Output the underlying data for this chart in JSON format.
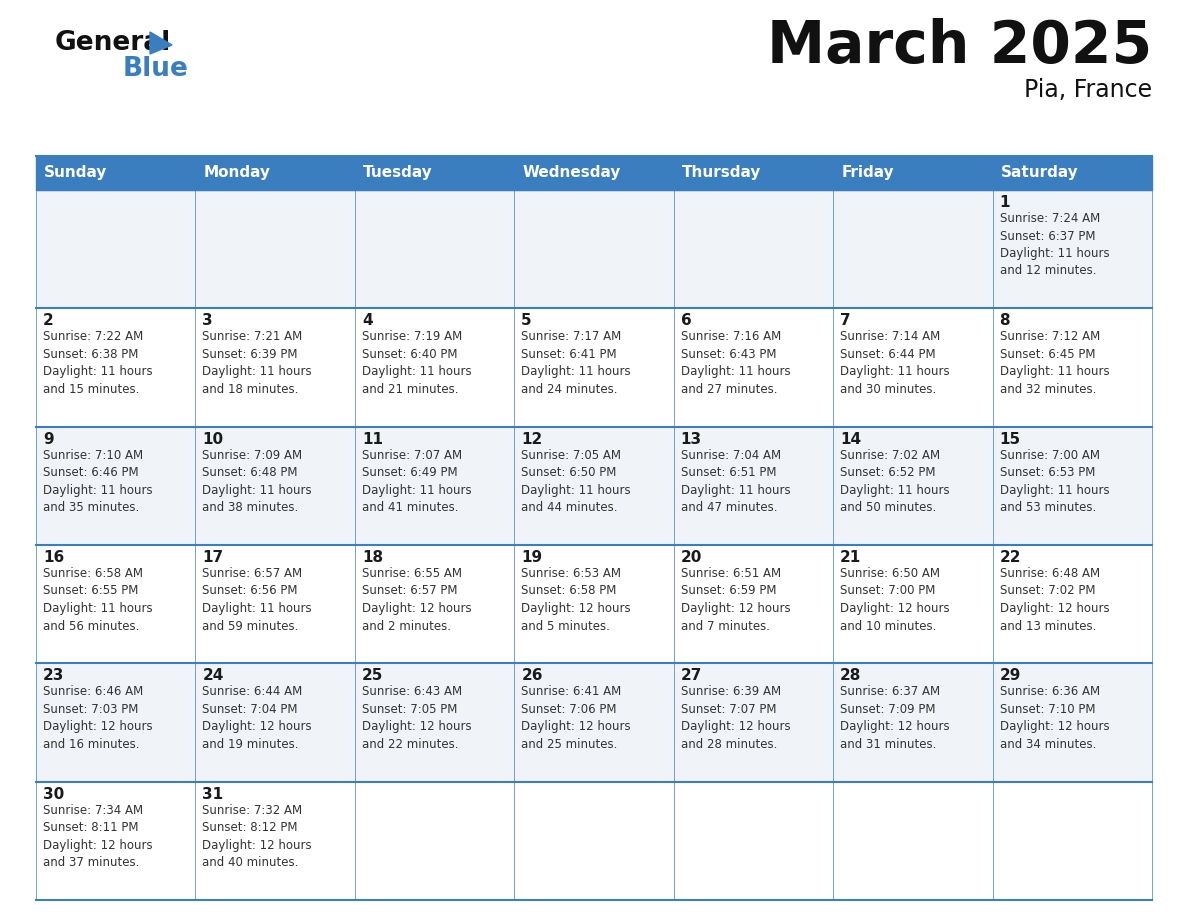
{
  "title": "March 2025",
  "subtitle": "Pia, France",
  "header_color": "#3a7ebf",
  "header_text_color": "#ffffff",
  "border_color": "#3a7ebf",
  "text_color": "#333333",
  "day_number_color": "#1a1a1a",
  "bg_color_even": "#f0f4f8",
  "bg_color_odd": "#ffffff",
  "days_of_week": [
    "Sunday",
    "Monday",
    "Tuesday",
    "Wednesday",
    "Thursday",
    "Friday",
    "Saturday"
  ],
  "calendar_data": [
    [
      null,
      null,
      null,
      null,
      null,
      null,
      {
        "day": "1",
        "sunrise": "7:24 AM",
        "sunset": "6:37 PM",
        "daylight": "11 hours\nand 12 minutes."
      }
    ],
    [
      {
        "day": "2",
        "sunrise": "7:22 AM",
        "sunset": "6:38 PM",
        "daylight": "11 hours\nand 15 minutes."
      },
      {
        "day": "3",
        "sunrise": "7:21 AM",
        "sunset": "6:39 PM",
        "daylight": "11 hours\nand 18 minutes."
      },
      {
        "day": "4",
        "sunrise": "7:19 AM",
        "sunset": "6:40 PM",
        "daylight": "11 hours\nand 21 minutes."
      },
      {
        "day": "5",
        "sunrise": "7:17 AM",
        "sunset": "6:41 PM",
        "daylight": "11 hours\nand 24 minutes."
      },
      {
        "day": "6",
        "sunrise": "7:16 AM",
        "sunset": "6:43 PM",
        "daylight": "11 hours\nand 27 minutes."
      },
      {
        "day": "7",
        "sunrise": "7:14 AM",
        "sunset": "6:44 PM",
        "daylight": "11 hours\nand 30 minutes."
      },
      {
        "day": "8",
        "sunrise": "7:12 AM",
        "sunset": "6:45 PM",
        "daylight": "11 hours\nand 32 minutes."
      }
    ],
    [
      {
        "day": "9",
        "sunrise": "7:10 AM",
        "sunset": "6:46 PM",
        "daylight": "11 hours\nand 35 minutes."
      },
      {
        "day": "10",
        "sunrise": "7:09 AM",
        "sunset": "6:48 PM",
        "daylight": "11 hours\nand 38 minutes."
      },
      {
        "day": "11",
        "sunrise": "7:07 AM",
        "sunset": "6:49 PM",
        "daylight": "11 hours\nand 41 minutes."
      },
      {
        "day": "12",
        "sunrise": "7:05 AM",
        "sunset": "6:50 PM",
        "daylight": "11 hours\nand 44 minutes."
      },
      {
        "day": "13",
        "sunrise": "7:04 AM",
        "sunset": "6:51 PM",
        "daylight": "11 hours\nand 47 minutes."
      },
      {
        "day": "14",
        "sunrise": "7:02 AM",
        "sunset": "6:52 PM",
        "daylight": "11 hours\nand 50 minutes."
      },
      {
        "day": "15",
        "sunrise": "7:00 AM",
        "sunset": "6:53 PM",
        "daylight": "11 hours\nand 53 minutes."
      }
    ],
    [
      {
        "day": "16",
        "sunrise": "6:58 AM",
        "sunset": "6:55 PM",
        "daylight": "11 hours\nand 56 minutes."
      },
      {
        "day": "17",
        "sunrise": "6:57 AM",
        "sunset": "6:56 PM",
        "daylight": "11 hours\nand 59 minutes."
      },
      {
        "day": "18",
        "sunrise": "6:55 AM",
        "sunset": "6:57 PM",
        "daylight": "12 hours\nand 2 minutes."
      },
      {
        "day": "19",
        "sunrise": "6:53 AM",
        "sunset": "6:58 PM",
        "daylight": "12 hours\nand 5 minutes."
      },
      {
        "day": "20",
        "sunrise": "6:51 AM",
        "sunset": "6:59 PM",
        "daylight": "12 hours\nand 7 minutes."
      },
      {
        "day": "21",
        "sunrise": "6:50 AM",
        "sunset": "7:00 PM",
        "daylight": "12 hours\nand 10 minutes."
      },
      {
        "day": "22",
        "sunrise": "6:48 AM",
        "sunset": "7:02 PM",
        "daylight": "12 hours\nand 13 minutes."
      }
    ],
    [
      {
        "day": "23",
        "sunrise": "6:46 AM",
        "sunset": "7:03 PM",
        "daylight": "12 hours\nand 16 minutes."
      },
      {
        "day": "24",
        "sunrise": "6:44 AM",
        "sunset": "7:04 PM",
        "daylight": "12 hours\nand 19 minutes."
      },
      {
        "day": "25",
        "sunrise": "6:43 AM",
        "sunset": "7:05 PM",
        "daylight": "12 hours\nand 22 minutes."
      },
      {
        "day": "26",
        "sunrise": "6:41 AM",
        "sunset": "7:06 PM",
        "daylight": "12 hours\nand 25 minutes."
      },
      {
        "day": "27",
        "sunrise": "6:39 AM",
        "sunset": "7:07 PM",
        "daylight": "12 hours\nand 28 minutes."
      },
      {
        "day": "28",
        "sunrise": "6:37 AM",
        "sunset": "7:09 PM",
        "daylight": "12 hours\nand 31 minutes."
      },
      {
        "day": "29",
        "sunrise": "6:36 AM",
        "sunset": "7:10 PM",
        "daylight": "12 hours\nand 34 minutes."
      }
    ],
    [
      {
        "day": "30",
        "sunrise": "7:34 AM",
        "sunset": "8:11 PM",
        "daylight": "12 hours\nand 37 minutes."
      },
      {
        "day": "31",
        "sunrise": "7:32 AM",
        "sunset": "8:12 PM",
        "daylight": "12 hours\nand 40 minutes."
      },
      null,
      null,
      null,
      null,
      null
    ]
  ]
}
